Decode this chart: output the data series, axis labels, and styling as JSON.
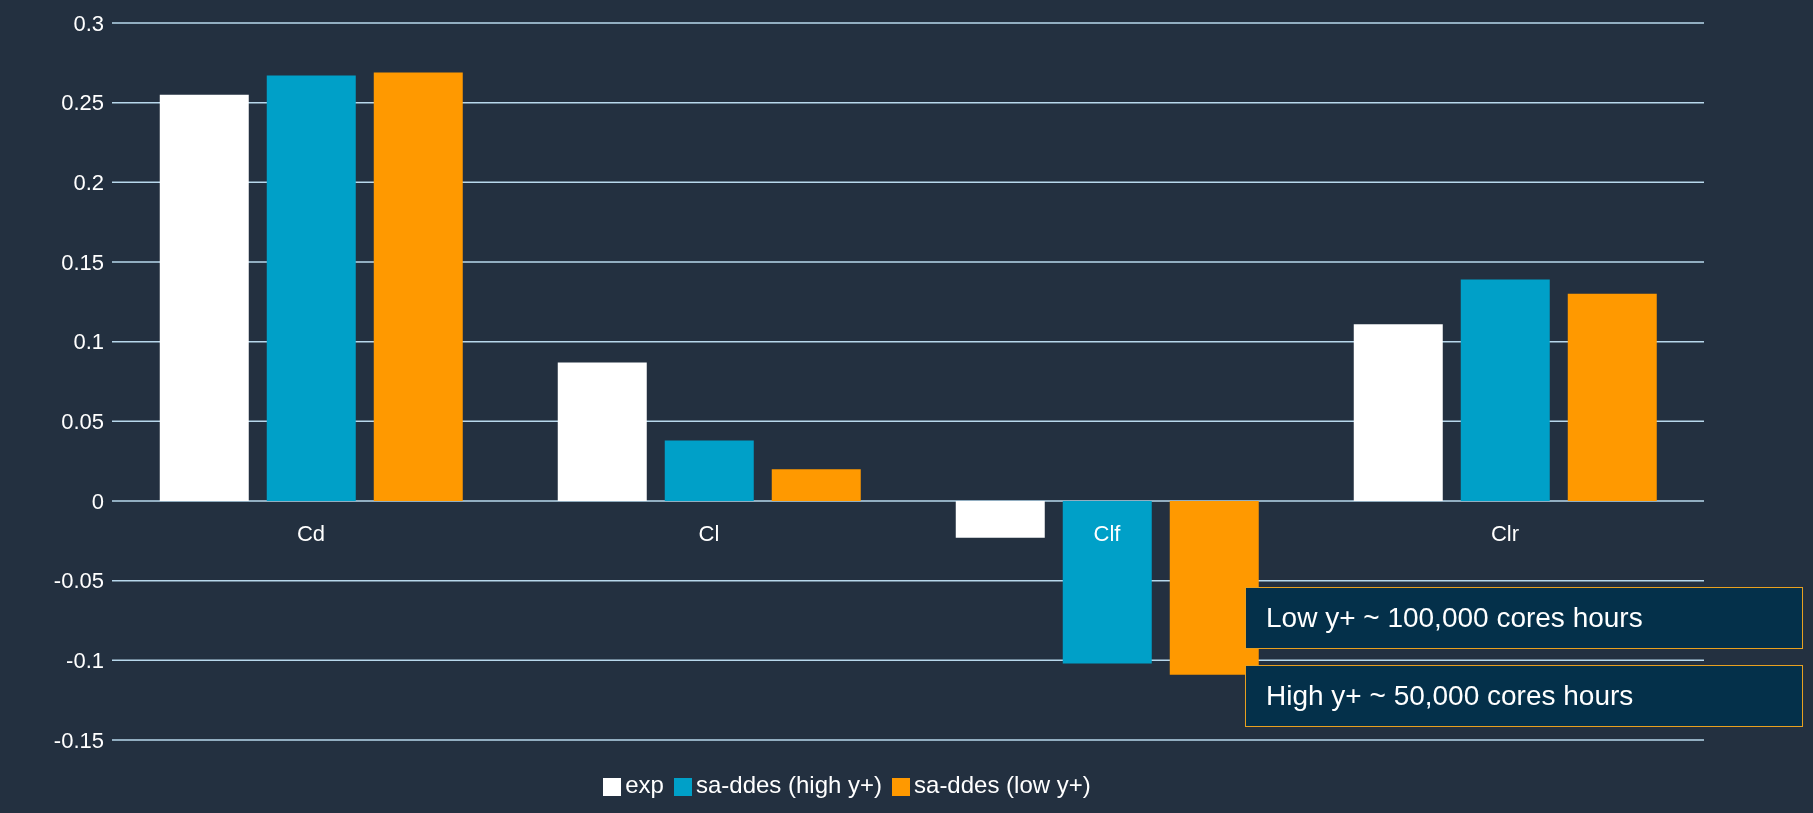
{
  "chart_data": {
    "type": "bar",
    "categories": [
      "Cd",
      "Cl",
      "Clf",
      "Clr"
    ],
    "series": [
      {
        "name": "exp",
        "color": "#ffffff",
        "values": [
          0.255,
          0.087,
          -0.023,
          0.111
        ]
      },
      {
        "name": "sa-ddes (high y+)",
        "color": "#00a0c8",
        "values": [
          0.267,
          0.038,
          -0.102,
          0.139
        ]
      },
      {
        "name": "sa-ddes (low y+)",
        "color": "#ff9900",
        "values": [
          0.269,
          0.02,
          -0.109,
          0.13
        ]
      }
    ],
    "ylim": [
      -0.15,
      0.3
    ],
    "yticks": [
      -0.15,
      -0.1,
      -0.05,
      0,
      0.05,
      0.1,
      0.15,
      0.2,
      0.25,
      0.3
    ],
    "grid": "y",
    "legend": "bottom",
    "annotations": [
      "Low y+ ~ 100,000 cores hours",
      "High y+ ~ 50,000 cores hours"
    ]
  }
}
